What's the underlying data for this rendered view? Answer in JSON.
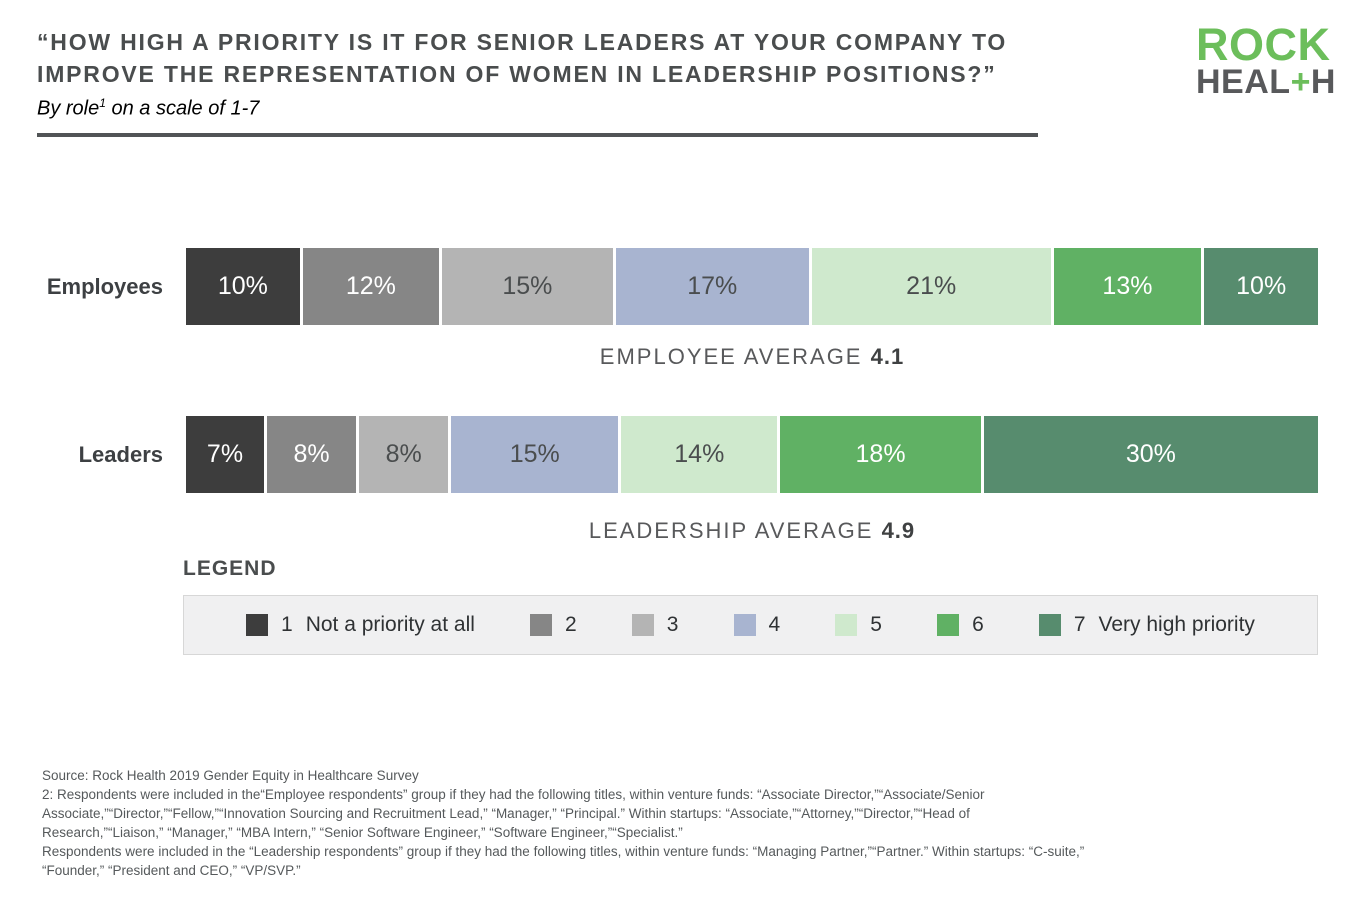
{
  "header": {
    "title_lines": [
      "“HOW HIGH A PRIORITY IS IT FOR SENIOR LEADERS AT YOUR COMPANY TO",
      "IMPROVE THE REPRESENTATION OF WOMEN IN LEADERSHIP POSITIONS?”"
    ],
    "subtitle_prefix": "By role",
    "subtitle_sup": "1",
    "subtitle_suffix": " on a scale of 1-7"
  },
  "logo": {
    "line1": "ROCK",
    "line2_part1": "HEAL",
    "plus": "+",
    "line2_part2": "H"
  },
  "chart_data": {
    "type": "bar",
    "subtype": "horizontal_stacked_100pct",
    "title": "“HOW HIGH A PRIORITY IS IT FOR SENIOR LEADERS AT YOUR COMPANY TO IMPROVE THE REPRESENTATION OF WOMEN IN LEADERSHIP POSITIONS?”",
    "subtitle": "By role¹ on a scale of 1-7",
    "unit": "%",
    "xlim": [
      0,
      100
    ],
    "grid": false,
    "legend_position": "bottom",
    "legend_title": "LEGEND",
    "scale_levels": [
      {
        "value": "1",
        "label": "Not a priority at all",
        "color": "#3d3d3d",
        "text_color": "#ffffff"
      },
      {
        "value": "2",
        "label": "",
        "color": "#868686",
        "text_color": "#ffffff"
      },
      {
        "value": "3",
        "label": "",
        "color": "#b4b4b4",
        "text_color": "#4a4d4e"
      },
      {
        "value": "4",
        "label": "",
        "color": "#a8b4d0",
        "text_color": "#4a4d4e"
      },
      {
        "value": "5",
        "label": "",
        "color": "#cfe9cd",
        "text_color": "#4a4d4e"
      },
      {
        "value": "6",
        "label": "",
        "color": "#60b164",
        "text_color": "#ffffff"
      },
      {
        "value": "7",
        "label": "Very high priority",
        "color": "#578c6e",
        "text_color": "#ffffff"
      }
    ],
    "rows": [
      {
        "category": "Employees",
        "values": [
          10,
          12,
          15,
          17,
          21,
          13,
          10
        ],
        "average_label": "EMPLOYEE AVERAGE",
        "average": "4.1"
      },
      {
        "category": "Leaders",
        "values": [
          7,
          8,
          8,
          15,
          14,
          18,
          30
        ],
        "average_label": "LEADERSHIP AVERAGE",
        "average": "4.9"
      }
    ]
  },
  "footer": {
    "lines": [
      "Source: Rock Health 2019 Gender Equity in Healthcare Survey",
      "2: Respondents were included in the“Employee respondents” group if they had the following titles, within venture funds:  “Associate Director,”“Associate/Senior",
      "Associate,”“Director,”“Fellow,”“Innovation Sourcing and Recruitment Lead,”  “Manager,”  “Principal.” Within startups: “Associate,”“Attorney,”“Director,”“Head of",
      "Research,”“Liaison,”  “Manager,”  “MBA Intern,”  “Senior Software Engineer,”  “Software Engineer,”“Specialist.”",
      "Respondents were included in the “Leadership respondents” group if they had the following titles, within venture funds: “Managing Partner,”“Partner.” Within startups: “C-suite,”",
      "“Founder,”  “President and CEO,”  “VP/SVP.”"
    ]
  }
}
